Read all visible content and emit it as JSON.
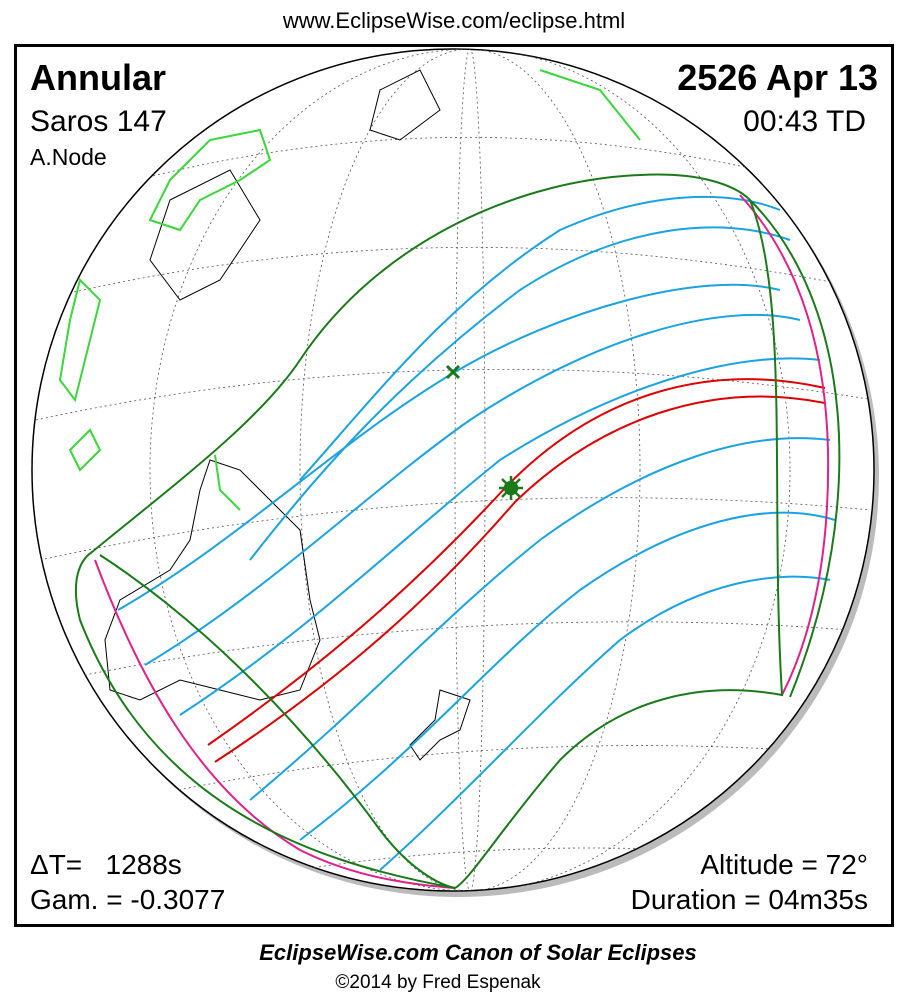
{
  "header": {
    "url": "www.EclipseWise.com/eclipse.html"
  },
  "top_left": {
    "type": "Annular",
    "saros": "Saros 147",
    "node": "A.Node"
  },
  "top_right": {
    "date": "2526 Apr 13",
    "time": "00:43 TD"
  },
  "bottom_left": {
    "delta_t": "ΔT=   1288s",
    "gamma": "Gam. = -0.3077"
  },
  "bottom_right": {
    "altitude": "Altitude = 72°",
    "duration": "Duration = 04m35s"
  },
  "footer": {
    "title": "EclipseWise.com Canon of Solar Eclipses",
    "credit": "©2014 by Fred Espenak"
  }
}
